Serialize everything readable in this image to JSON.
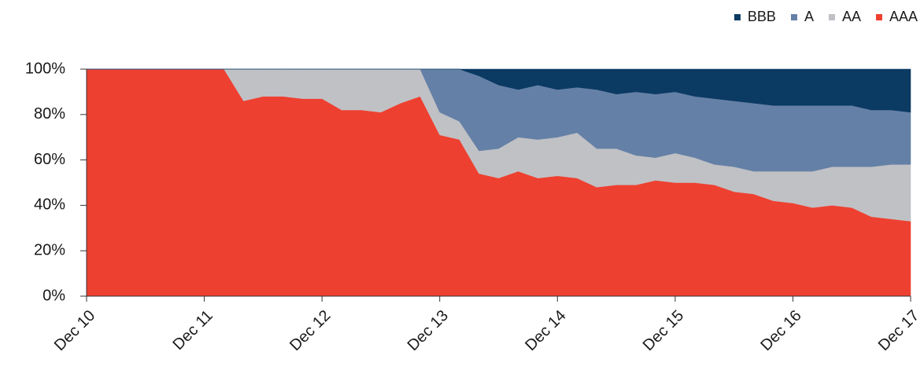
{
  "chart_data": {
    "type": "stacked_area",
    "categories": [
      "Dec 10",
      null,
      null,
      null,
      null,
      null,
      "Dec 11",
      null,
      null,
      null,
      null,
      null,
      "Dec 12",
      null,
      null,
      null,
      null,
      null,
      "Dec 13",
      null,
      null,
      null,
      null,
      null,
      "Dec 14",
      null,
      null,
      null,
      null,
      null,
      "Dec 15",
      null,
      null,
      null,
      null,
      null,
      "Dec 16",
      null,
      null,
      null,
      null,
      null,
      "Dec 17"
    ],
    "series": [
      {
        "name": "AAA",
        "color": "#ee4030",
        "values": [
          100,
          100,
          100,
          100,
          100,
          100,
          100,
          100,
          86,
          88,
          88,
          87,
          87,
          82,
          82,
          81,
          85,
          88,
          71,
          69,
          54,
          52,
          55,
          52,
          53,
          52,
          48,
          49,
          49,
          51,
          50,
          50,
          49,
          46,
          45,
          42,
          41,
          39,
          40,
          39,
          35,
          34,
          33
        ]
      },
      {
        "name": "AA",
        "color": "#c0c1c5",
        "values": [
          0,
          0,
          0,
          0,
          0,
          0,
          0,
          0,
          14,
          12,
          12,
          13,
          13,
          18,
          18,
          19,
          15,
          12,
          10,
          8,
          10,
          13,
          15,
          17,
          17,
          20,
          17,
          16,
          13,
          10,
          13,
          11,
          9,
          11,
          10,
          13,
          14,
          16,
          17,
          18,
          22,
          24,
          25
        ]
      },
      {
        "name": "A",
        "color": "#6580a6",
        "values": [
          0,
          0,
          0,
          0,
          0,
          0,
          0,
          0,
          0,
          0,
          0,
          0,
          0,
          0,
          0,
          0,
          0,
          0,
          19,
          23,
          33,
          28,
          21,
          24,
          21,
          20,
          26,
          24,
          28,
          28,
          27,
          27,
          29,
          29,
          30,
          29,
          29,
          29,
          27,
          27,
          25,
          24,
          23
        ]
      },
      {
        "name": "BBB",
        "color": "#0b3a63",
        "values": [
          0,
          0,
          0,
          0,
          0,
          0,
          0,
          0,
          0,
          0,
          0,
          0,
          0,
          0,
          0,
          0,
          0,
          0,
          0,
          0,
          3,
          7,
          9,
          7,
          9,
          8,
          9,
          11,
          10,
          11,
          10,
          12,
          13,
          14,
          15,
          16,
          16,
          16,
          16,
          16,
          18,
          18,
          19
        ]
      }
    ],
    "ylim": [
      0,
      100
    ],
    "yticks": [
      {
        "value": 0,
        "label": "0%"
      },
      {
        "value": 20,
        "label": "20%"
      },
      {
        "value": 40,
        "label": "40%"
      },
      {
        "value": 60,
        "label": "60%"
      },
      {
        "value": 80,
        "label": "80%"
      },
      {
        "value": 100,
        "label": "100%"
      }
    ],
    "legend": "top-right"
  }
}
